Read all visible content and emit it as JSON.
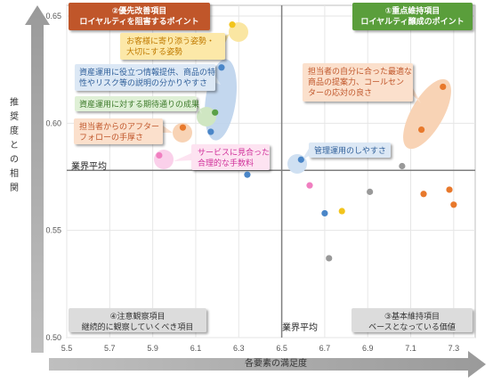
{
  "chart_data": {
    "type": "scatter",
    "xlabel": "各要素の満足度",
    "ylabel": "推奨度との相関",
    "xlim": [
      5.5,
      7.4
    ],
    "ylim": [
      0.5,
      0.655
    ],
    "x_ticks": [
      "5.5",
      "5.7",
      "5.9",
      "6.1",
      "6.3",
      "6.5",
      "6.7",
      "6.9",
      "7.1",
      "7.3"
    ],
    "y_ticks": [
      "0.50",
      "0.55",
      "0.60",
      "0.65"
    ],
    "average_x": 6.5,
    "average_y": 0.578,
    "average_label": "業界平均",
    "quadrants": [
      {
        "id": "tl",
        "lines": [
          "②優先改善項目",
          "ロイヤルティを阻害するポイント"
        ],
        "color": "#c0562a"
      },
      {
        "id": "tr",
        "lines": [
          "①重点維持項目",
          "ロイヤルティ醸成のポイント"
        ],
        "color": "#5a9e3a"
      },
      {
        "id": "bl",
        "lines": [
          "④注意観察項目",
          "継続的に観察していくべき項目"
        ],
        "color": "#dcdcdc"
      },
      {
        "id": "br",
        "lines": [
          "③基本維持項目",
          "ベースとなっている価値"
        ],
        "color": "#dcdcdc"
      }
    ],
    "points": [
      {
        "x": 6.27,
        "y": 0.646,
        "color": "#f2c41c"
      },
      {
        "x": 6.22,
        "y": 0.626,
        "color": "#4a86c8"
      },
      {
        "x": 6.19,
        "y": 0.605,
        "color": "#5aa047"
      },
      {
        "x": 6.17,
        "y": 0.596,
        "color": "#4a86c8"
      },
      {
        "x": 6.04,
        "y": 0.598,
        "color": "#e8792c"
      },
      {
        "x": 5.93,
        "y": 0.585,
        "color": "#f07fc0"
      },
      {
        "x": 6.34,
        "y": 0.576,
        "color": "#4a86c8"
      },
      {
        "x": 7.25,
        "y": 0.617,
        "color": "#e8792c"
      },
      {
        "x": 7.15,
        "y": 0.597,
        "color": "#e8792c"
      },
      {
        "x": 6.59,
        "y": 0.583,
        "color": "#4a86c8"
      },
      {
        "x": 7.06,
        "y": 0.58,
        "color": "#999999"
      },
      {
        "x": 6.63,
        "y": 0.571,
        "color": "#f07fc0"
      },
      {
        "x": 6.91,
        "y": 0.568,
        "color": "#999999"
      },
      {
        "x": 7.16,
        "y": 0.567,
        "color": "#e8792c"
      },
      {
        "x": 7.28,
        "y": 0.569,
        "color": "#e8792c"
      },
      {
        "x": 7.3,
        "y": 0.562,
        "color": "#e8792c"
      },
      {
        "x": 6.78,
        "y": 0.559,
        "color": "#f2c41c"
      },
      {
        "x": 6.7,
        "y": 0.558,
        "color": "#4a86c8"
      },
      {
        "x": 6.72,
        "y": 0.537,
        "color": "#999999"
      }
    ],
    "callouts": [
      {
        "lines": [
          "お客様に寄り添う姿勢・",
          "大切にする姿勢"
        ],
        "box": "#fce8a8",
        "text": "#c07a00"
      },
      {
        "lines": [
          "資産運用に役立つ情報提供、商品の特",
          "性やリスク等の説明の分かりやすさ"
        ],
        "box": "#dce8f5",
        "text": "#2f5f9a"
      },
      {
        "lines": [
          "資産運用に対する期待通りの成果"
        ],
        "box": "#dff0d6",
        "text": "#3c7a2a"
      },
      {
        "lines": [
          "担当者からのアフター",
          "フォローの手厚さ"
        ],
        "box": "#fbe0cc",
        "text": "#c0562a"
      },
      {
        "lines": [
          "サービスに見合った",
          "合理的な手数料"
        ],
        "box": "#fde3f1",
        "text": "#d0309a"
      },
      {
        "lines": [
          "担当者の自分に合った最適な",
          "商品の提案力、コールセン",
          "ターの応対の良さ"
        ],
        "box": "#fbe0cc",
        "text": "#c0562a"
      },
      {
        "lines": [
          "管理運用のしやすさ"
        ],
        "box": "#dce8f5",
        "text": "#2f5f9a"
      }
    ]
  }
}
